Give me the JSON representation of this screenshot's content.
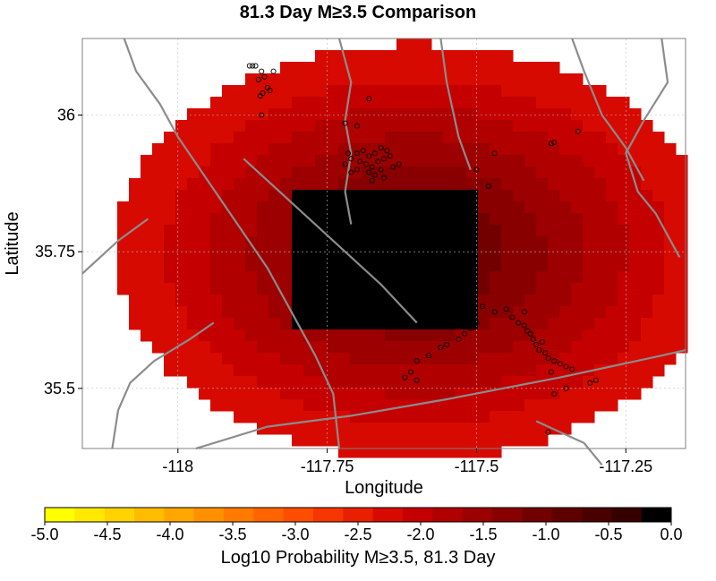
{
  "chart_data": {
    "type": "heatmap",
    "title": "81.3 Day M≥3.5 Comparison",
    "xlabel": "Longitude",
    "ylabel": "Latitude",
    "xlim": [
      -118.16,
      -117.15
    ],
    "ylim": [
      35.39,
      36.14
    ],
    "x_ticks": [
      -118,
      -117.75,
      -117.5,
      -117.25
    ],
    "x_tick_labels": [
      "-118",
      "-117.75",
      "-117.5",
      "-117.25"
    ],
    "y_ticks": [
      35.5,
      35.75,
      36
    ],
    "y_tick_labels": [
      "35.5",
      "35.75",
      "36"
    ],
    "grid": true,
    "colorbar": {
      "label": "Log10 Probability M≥3.5, 81.3 Day",
      "min": -5.0,
      "max": 0.0,
      "tick_labels": [
        "-5.0",
        "-4.5",
        "-4.0",
        "-3.5",
        "-3.0",
        "-2.5",
        "-2.0",
        "-1.5",
        "-1.0",
        "-0.5",
        "0.0"
      ],
      "colors": [
        "#ffff00",
        "#ffe900",
        "#ffd200",
        "#ffbc00",
        "#ffa600",
        "#ff9000",
        "#ff7a00",
        "#ff6300",
        "#ff4d00",
        "#f53600",
        "#e81f00",
        "#d60a00",
        "#c40000",
        "#b00000",
        "#9c0000",
        "#880000",
        "#730000",
        "#5f0000",
        "#4b0000",
        "#370000",
        "#000000"
      ]
    },
    "field": {
      "center": [
        -117.6,
        35.75
      ],
      "saturated_value": 0.0,
      "outer_value": -2.2
    },
    "events": [
      [
        -117.87,
        36.09
      ],
      [
        -117.875,
        36.09
      ],
      [
        -117.88,
        36.09
      ],
      [
        -117.86,
        36.08
      ],
      [
        -117.855,
        36.07
      ],
      [
        -117.865,
        36.065
      ],
      [
        -117.85,
        36.05
      ],
      [
        -117.858,
        36.04
      ],
      [
        -117.846,
        36.045
      ],
      [
        -117.862,
        36.035
      ],
      [
        -117.84,
        36.08
      ],
      [
        -117.68,
        36.03
      ],
      [
        -117.86,
        36.0
      ],
      [
        -117.72,
        35.985
      ],
      [
        -117.7,
        35.98
      ],
      [
        -117.7,
        35.93
      ],
      [
        -117.69,
        35.935
      ],
      [
        -117.68,
        35.925
      ],
      [
        -117.67,
        35.93
      ],
      [
        -117.71,
        35.92
      ],
      [
        -117.695,
        35.915
      ],
      [
        -117.685,
        35.91
      ],
      [
        -117.675,
        35.905
      ],
      [
        -117.665,
        35.915
      ],
      [
        -117.655,
        35.92
      ],
      [
        -117.645,
        35.925
      ],
      [
        -117.66,
        35.94
      ],
      [
        -117.65,
        35.935
      ],
      [
        -117.7,
        35.9
      ],
      [
        -117.68,
        35.895
      ],
      [
        -117.66,
        35.9
      ],
      [
        -117.64,
        35.905
      ],
      [
        -117.63,
        35.91
      ],
      [
        -117.72,
        35.91
      ],
      [
        -117.715,
        35.93
      ],
      [
        -117.675,
        35.88
      ],
      [
        -117.655,
        35.885
      ],
      [
        -117.67,
        35.89
      ],
      [
        -117.71,
        35.895
      ],
      [
        -117.37,
        35.95
      ],
      [
        -117.375,
        35.948
      ],
      [
        -117.33,
        35.97
      ],
      [
        -117.47,
        35.93
      ],
      [
        -117.5,
        35.9
      ],
      [
        -117.48,
        35.87
      ],
      [
        -117.49,
        35.65
      ],
      [
        -117.47,
        35.64
      ],
      [
        -117.45,
        35.645
      ],
      [
        -117.44,
        35.63
      ],
      [
        -117.43,
        35.62
      ],
      [
        -117.42,
        35.615
      ],
      [
        -117.415,
        35.605
      ],
      [
        -117.41,
        35.6
      ],
      [
        -117.405,
        35.59
      ],
      [
        -117.4,
        35.58
      ],
      [
        -117.395,
        35.57
      ],
      [
        -117.385,
        35.565
      ],
      [
        -117.38,
        35.555
      ],
      [
        -117.37,
        35.55
      ],
      [
        -117.36,
        35.545
      ],
      [
        -117.35,
        35.54
      ],
      [
        -117.34,
        35.535
      ],
      [
        -117.375,
        35.53
      ],
      [
        -117.39,
        35.585
      ],
      [
        -117.42,
        35.64
      ],
      [
        -117.5,
        35.62
      ],
      [
        -117.51,
        35.61
      ],
      [
        -117.52,
        35.6
      ],
      [
        -117.53,
        35.59
      ],
      [
        -117.58,
        35.56
      ],
      [
        -117.6,
        35.55
      ],
      [
        -117.61,
        35.53
      ],
      [
        -117.62,
        35.52
      ],
      [
        -117.6,
        35.515
      ],
      [
        -117.35,
        35.5
      ],
      [
        -117.37,
        35.49
      ],
      [
        -117.31,
        35.51
      ],
      [
        -117.3,
        35.515
      ],
      [
        -117.38,
        35.42
      ],
      [
        -117.55,
        35.58
      ],
      [
        -117.56,
        35.575
      ]
    ],
    "faults": [
      [
        [
          -118.09,
          36.14
        ],
        [
          -118.07,
          36.08
        ],
        [
          -118.03,
          36.02
        ],
        [
          -118.0,
          35.96
        ],
        [
          -117.95,
          35.88
        ],
        [
          -117.9,
          35.8
        ],
        [
          -117.85,
          35.72
        ],
        [
          -117.81,
          35.64
        ],
        [
          -117.77,
          35.56
        ],
        [
          -117.74,
          35.49
        ],
        [
          -117.73,
          35.39
        ]
      ],
      [
        [
          -117.73,
          36.14
        ],
        [
          -117.71,
          36.06
        ],
        [
          -117.72,
          35.99
        ],
        [
          -117.71,
          35.93
        ],
        [
          -117.72,
          35.86
        ],
        [
          -117.71,
          35.8
        ]
      ],
      [
        [
          -117.56,
          36.14
        ],
        [
          -117.55,
          36.06
        ],
        [
          -117.53,
          35.96
        ],
        [
          -117.51,
          35.9
        ]
      ],
      [
        [
          -117.89,
          35.92
        ],
        [
          -117.81,
          35.84
        ],
        [
          -117.73,
          35.76
        ],
        [
          -117.66,
          35.69
        ],
        [
          -117.6,
          35.62
        ]
      ],
      [
        [
          -117.34,
          36.14
        ],
        [
          -117.32,
          36.08
        ],
        [
          -117.29,
          36.0
        ],
        [
          -117.25,
          35.94
        ],
        [
          -117.22,
          35.88
        ]
      ],
      [
        [
          -117.19,
          36.14
        ],
        [
          -117.18,
          36.06
        ],
        [
          -117.22,
          35.99
        ],
        [
          -117.25,
          35.93
        ],
        [
          -117.23,
          35.86
        ],
        [
          -117.2,
          35.82
        ],
        [
          -117.16,
          35.74
        ]
      ],
      [
        [
          -118.16,
          35.71
        ],
        [
          -118.1,
          35.77
        ],
        [
          -118.05,
          35.81
        ]
      ],
      [
        [
          -117.94,
          35.62
        ],
        [
          -117.98,
          35.59
        ],
        [
          -118.04,
          35.55
        ],
        [
          -118.08,
          35.51
        ],
        [
          -118.1,
          35.46
        ],
        [
          -118.11,
          35.39
        ]
      ],
      [
        [
          -117.97,
          35.39
        ],
        [
          -117.85,
          35.43
        ],
        [
          -117.71,
          35.45
        ],
        [
          -117.55,
          35.48
        ],
        [
          -117.36,
          35.52
        ],
        [
          -117.19,
          35.56
        ],
        [
          -117.15,
          35.57
        ]
      ],
      [
        [
          -117.4,
          35.44
        ],
        [
          -117.32,
          35.4
        ],
        [
          -117.29,
          35.36
        ]
      ]
    ]
  }
}
